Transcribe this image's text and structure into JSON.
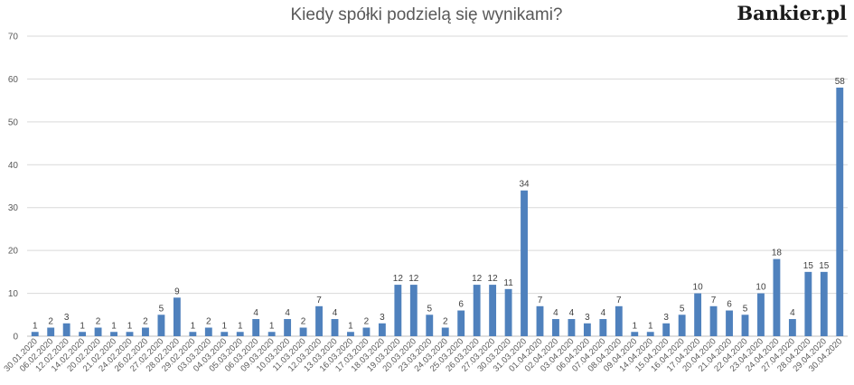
{
  "brand": {
    "logo": "Bankier.pl"
  },
  "chart_data": {
    "type": "bar",
    "title": "Kiedy spółki podzielą się wynikami?",
    "ylim": [
      0,
      70
    ],
    "yticks": [
      0,
      10,
      20,
      30,
      40,
      50,
      60,
      70
    ],
    "grid": true,
    "bar_color": "#4f81bd",
    "categories": [
      "30.01.2020",
      "06.02.2020",
      "12.02.2020",
      "14.02.2020",
      "20.02.2020",
      "21.02.2020",
      "24.02.2020",
      "26.02.2020",
      "27.02.2020",
      "28.02.2020",
      "29.02.2020",
      "03.03.2020",
      "04.03.2020",
      "05.03.2020",
      "06.03.2020",
      "09.03.2020",
      "10.03.2020",
      "11.03.2020",
      "12.03.2020",
      "13.03.2020",
      "16.03.2020",
      "17.03.2020",
      "18.03.2020",
      "19.03.2020",
      "20.03.2020",
      "23.03.2020",
      "24.03.2020",
      "25.03.2020",
      "26.03.2020",
      "27.03.2020",
      "30.03.2020",
      "31.03.2020",
      "01.04.2020",
      "02.04.2020",
      "03.04.2020",
      "06.04.2020",
      "07.04.2020",
      "08.04.2020",
      "09.04.2020",
      "14.04.2020",
      "15.04.2020",
      "16.04.2020",
      "17.04.2020",
      "20.04.2020",
      "21.04.2020",
      "22.04.2020",
      "23.04.2020",
      "24.04.2020",
      "27.04.2020",
      "28.04.2020",
      "29.04.2020",
      "30.04.2020"
    ],
    "values": [
      1,
      2,
      3,
      1,
      2,
      1,
      1,
      2,
      5,
      9,
      1,
      2,
      1,
      1,
      4,
      1,
      4,
      2,
      7,
      4,
      1,
      2,
      3,
      12,
      12,
      5,
      2,
      6,
      12,
      12,
      11,
      34,
      7,
      4,
      4,
      3,
      4,
      7,
      1,
      1,
      3,
      5,
      10,
      7,
      6,
      5,
      10,
      18,
      4,
      15,
      15,
      58
    ]
  }
}
